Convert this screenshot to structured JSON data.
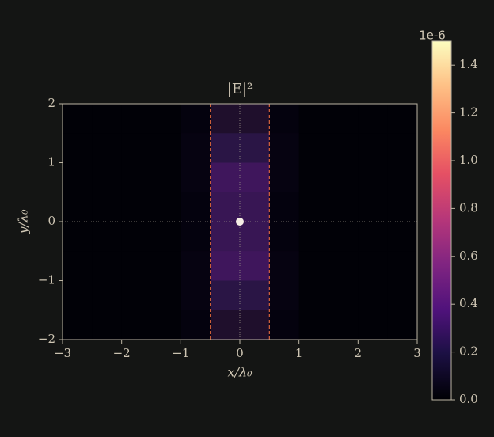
{
  "chart_data": {
    "type": "heatmap",
    "title": "|E|²",
    "xlabel": "x/λ₀",
    "ylabel": "y/λ₀",
    "xlim": [
      -3,
      3
    ],
    "ylim": [
      -2,
      2
    ],
    "xticks": [
      {
        "value": -3,
        "label": "−3"
      },
      {
        "value": -2,
        "label": "−2"
      },
      {
        "value": -1,
        "label": "−1"
      },
      0,
      1,
      2,
      3
    ],
    "yticks": [
      {
        "value": -2,
        "label": "−2"
      },
      {
        "value": -1,
        "label": "−1"
      },
      0,
      1,
      2
    ],
    "colormap": "magma",
    "clim": [
      0,
      1.5e-06
    ],
    "cticks": [
      {
        "value": 0,
        "label": "0.0"
      },
      {
        "value": 2e-07,
        "label": "0.2"
      },
      {
        "value": 4e-07,
        "label": "0.4"
      },
      {
        "value": 6e-07,
        "label": "0.6"
      },
      {
        "value": 8e-07,
        "label": "0.8"
      },
      {
        "value": 1e-06,
        "label": "1.0"
      },
      {
        "value": 1.2e-06,
        "label": "1.2"
      },
      {
        "value": 1.4e-06,
        "label": "1.4"
      }
    ],
    "c_offset_label": "1e-6",
    "x_centers": [
      -2.75,
      -2.25,
      -1.75,
      -1.25,
      -0.75,
      -0.25,
      0.25,
      0.75,
      1.25,
      1.75,
      2.25,
      2.75
    ],
    "y_centers": [
      1.75,
      1.25,
      0.75,
      0.25,
      -0.25,
      -0.75,
      -1.25,
      -1.75
    ],
    "z": [
      [
        1e-08,
        1e-08,
        1e-08,
        1e-08,
        3e-08,
        1.2e-07,
        1.2e-07,
        3e-08,
        1e-08,
        1e-08,
        1e-08,
        1e-08
      ],
      [
        1e-08,
        1e-08,
        1e-08,
        1e-08,
        4e-08,
        2e-07,
        2e-07,
        4e-08,
        1e-08,
        1e-08,
        1e-08,
        1e-08
      ],
      [
        1e-08,
        1e-08,
        1e-08,
        1e-08,
        4e-08,
        2.8e-07,
        2.8e-07,
        4e-08,
        1e-08,
        1e-08,
        1e-08,
        1e-08
      ],
      [
        1e-08,
        1e-08,
        1e-08,
        1e-08,
        3e-08,
        2.5e-07,
        2.5e-07,
        3e-08,
        1e-08,
        1e-08,
        1e-08,
        1e-08
      ],
      [
        1e-08,
        1e-08,
        1e-08,
        1e-08,
        3e-08,
        2.5e-07,
        2.5e-07,
        3e-08,
        1e-08,
        1e-08,
        1e-08,
        1e-08
      ],
      [
        1e-08,
        1e-08,
        1e-08,
        1e-08,
        4e-08,
        2.8e-07,
        2.8e-07,
        4e-08,
        1e-08,
        1e-08,
        1e-08,
        1e-08
      ],
      [
        1e-08,
        1e-08,
        1e-08,
        1e-08,
        4e-08,
        2e-07,
        2e-07,
        4e-08,
        1e-08,
        1e-08,
        1e-08,
        1e-08
      ],
      [
        1e-08,
        1e-08,
        1e-08,
        1e-08,
        3e-08,
        1.2e-07,
        1.2e-07,
        3e-08,
        1e-08,
        1e-08,
        1e-08,
        1e-08
      ]
    ],
    "slab_x": [
      -0.5,
      0.5
    ],
    "source": {
      "x": 0,
      "y": 0
    }
  }
}
